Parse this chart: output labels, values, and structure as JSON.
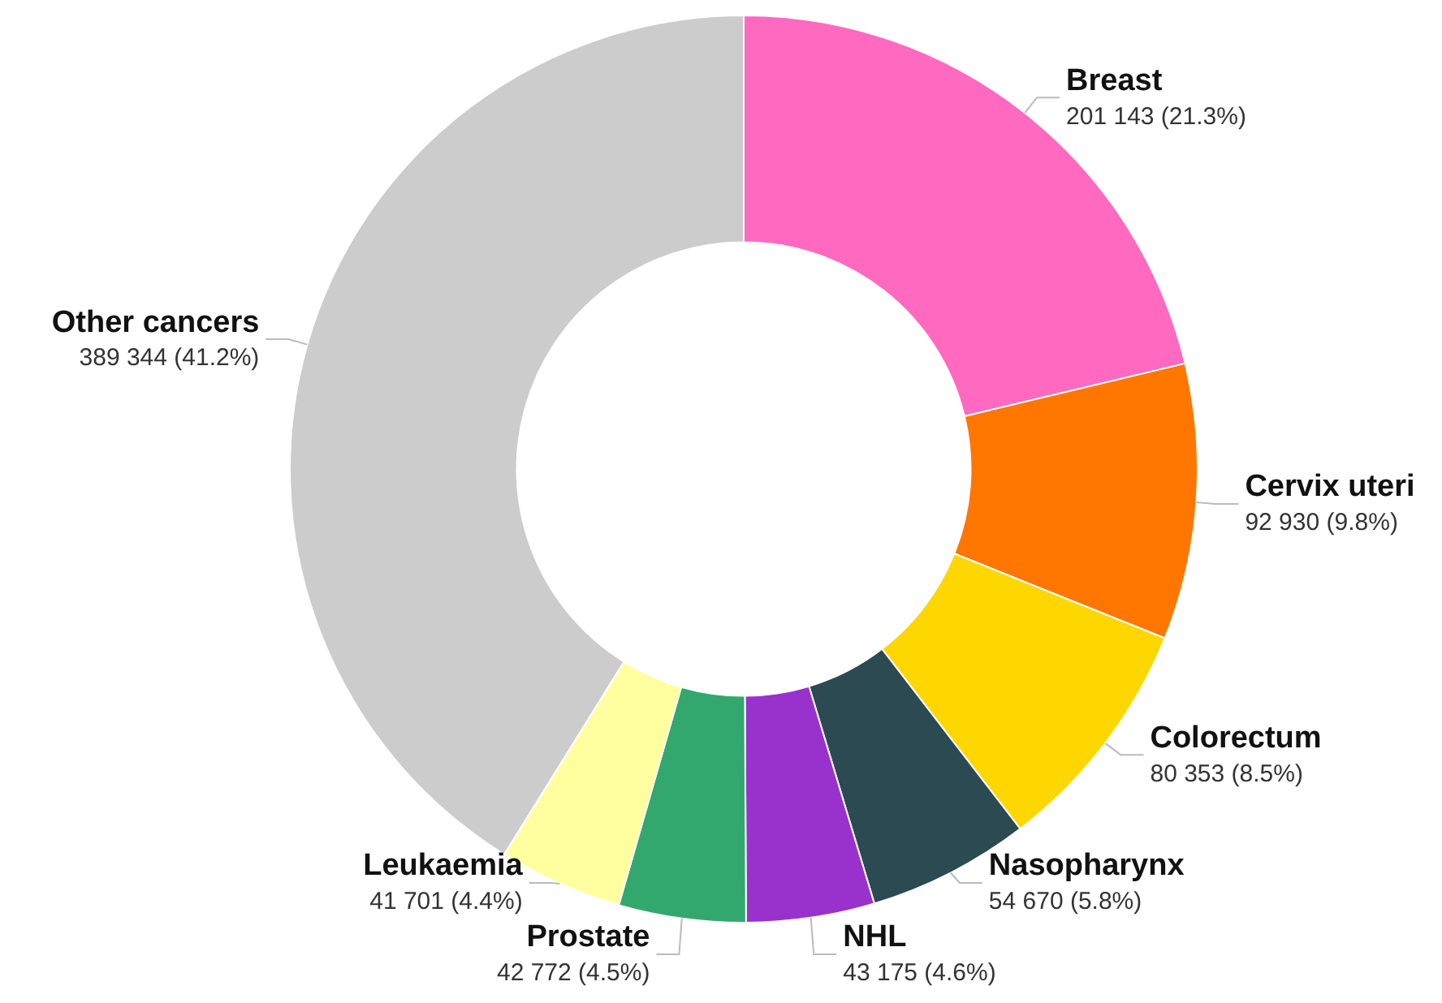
{
  "chart_data": {
    "type": "donut",
    "categories": [
      "Breast",
      "Cervix uteri",
      "Colorectum",
      "Nasopharynx",
      "NHL",
      "Prostate",
      "Leukaemia",
      "Other cancers"
    ],
    "values": [
      201143,
      92930,
      80353,
      54670,
      43175,
      42772,
      41701,
      389344
    ],
    "value_labels": [
      "201 143 (21.3%)",
      "92 930 (9.8%)",
      "80 353 (8.5%)",
      "54 670 (5.8%)",
      "43 175 (4.6%)",
      "42 772 (4.5%)",
      "41 701 (4.4%)",
      "389 344 (41.2%)"
    ],
    "colors": [
      "#ff69c0",
      "#ff7700",
      "#ffd700",
      "#2b4a52",
      "#9932cc",
      "#33a86e",
      "#ffffa0",
      "#cccccc"
    ],
    "legend": false
  }
}
